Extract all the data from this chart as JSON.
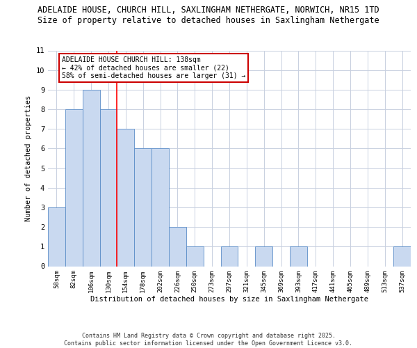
{
  "title1": "ADELAIDE HOUSE, CHURCH HILL, SAXLINGHAM NETHERGATE, NORWICH, NR15 1TD",
  "title2": "Size of property relative to detached houses in Saxlingham Nethergate",
  "xlabel": "Distribution of detached houses by size in Saxlingham Nethergate",
  "ylabel": "Number of detached properties",
  "categories": [
    "58sqm",
    "82sqm",
    "106sqm",
    "130sqm",
    "154sqm",
    "178sqm",
    "202sqm",
    "226sqm",
    "250sqm",
    "273sqm",
    "297sqm",
    "321sqm",
    "345sqm",
    "369sqm",
    "393sqm",
    "417sqm",
    "441sqm",
    "465sqm",
    "489sqm",
    "513sqm",
    "537sqm"
  ],
  "values": [
    3,
    8,
    9,
    8,
    7,
    6,
    6,
    2,
    1,
    0,
    1,
    0,
    1,
    0,
    1,
    0,
    0,
    0,
    0,
    0,
    1
  ],
  "bar_color": "#c9d9f0",
  "bar_edge_color": "#5b8dc8",
  "red_line_x": 3.5,
  "annotation_text": "ADELAIDE HOUSE CHURCH HILL: 138sqm\n← 42% of detached houses are smaller (22)\n58% of semi-detached houses are larger (31) →",
  "annotation_box_color": "#ffffff",
  "annotation_box_edge": "#cc0000",
  "ylim": [
    0,
    11
  ],
  "yticks": [
    0,
    1,
    2,
    3,
    4,
    5,
    6,
    7,
    8,
    9,
    10,
    11
  ],
  "footer": "Contains HM Land Registry data © Crown copyright and database right 2025.\nContains public sector information licensed under the Open Government Licence v3.0.",
  "bg_color": "#ffffff",
  "grid_color": "#c8d0e0",
  "title1_fontsize": 8.5,
  "title2_fontsize": 8.5
}
